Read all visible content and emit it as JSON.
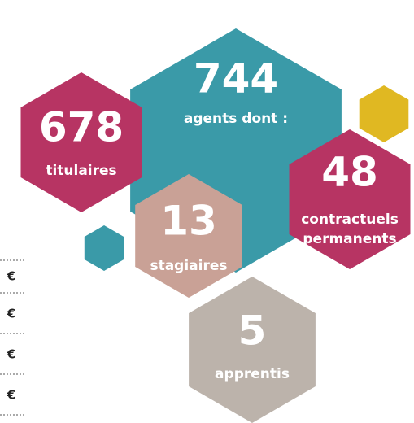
{
  "total": {
    "number": "744",
    "label": "agents dont :"
  },
  "groups": [
    {
      "number": "678",
      "label": [
        "titulaires"
      ]
    },
    {
      "number": "48",
      "label": [
        "contractuels",
        "permanents"
      ]
    },
    {
      "number": "13",
      "label": [
        "stagiaires"
      ]
    },
    {
      "number": "5",
      "label": [
        "apprentis"
      ]
    }
  ],
  "table": {
    "rows": [
      "€",
      "€",
      "€",
      "€"
    ]
  }
}
